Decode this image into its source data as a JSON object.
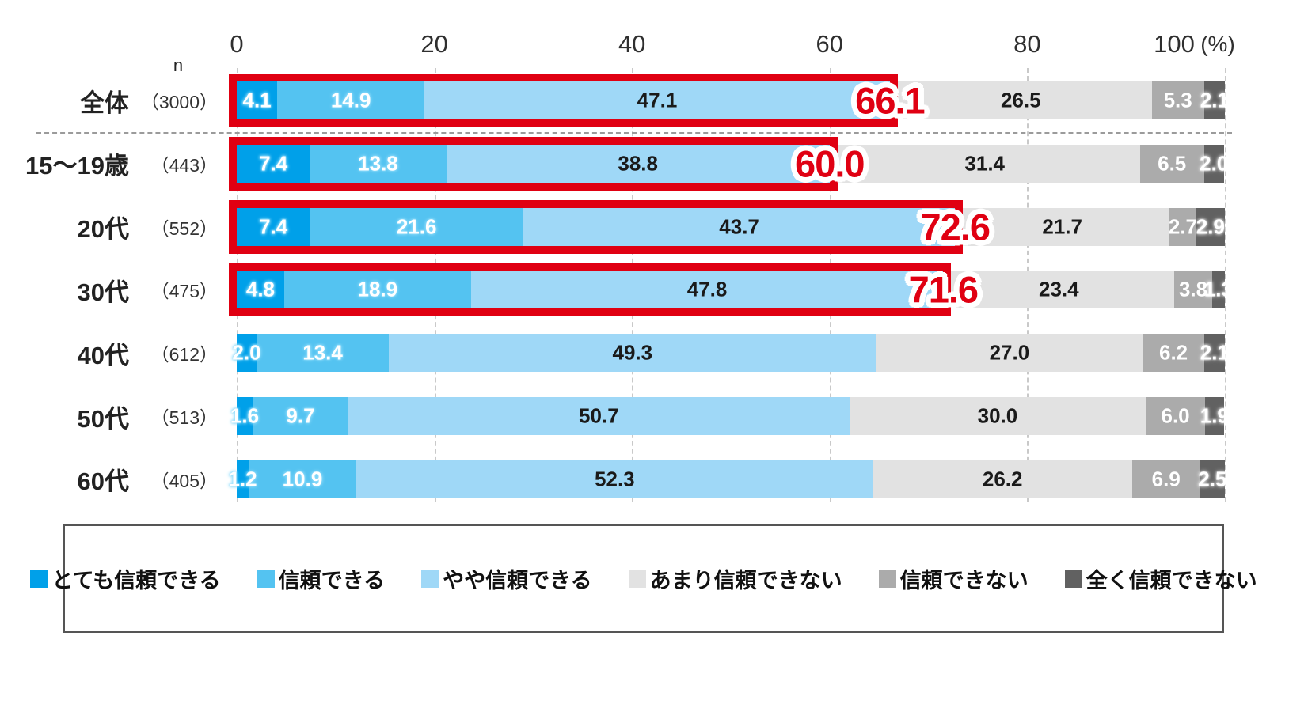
{
  "chart_data": {
    "type": "bar",
    "orientation": "horizontal-stacked",
    "title": "",
    "unit": "(%)",
    "n_header": "n",
    "x_axis": {
      "tick_values": [
        0,
        20,
        40,
        60,
        80,
        100
      ],
      "tick_labels": [
        "0",
        "20",
        "40",
        "60",
        "80",
        "100"
      ],
      "min": 0,
      "max": 100,
      "grid": true,
      "grid_style": "dashed"
    },
    "legend_position": "bottom",
    "series_labels": [
      "とても信頼できる",
      "信頼できる",
      "やや信頼できる",
      "あまり信頼できない",
      "信頼できない",
      "全く信頼できない"
    ],
    "series_colors": [
      "#00a0e9",
      "#54c3f1",
      "#9fd8f7",
      "#e2e2e2",
      "#ababab",
      "#616161"
    ],
    "label_styles": [
      "halo-blue",
      "halo-blue",
      "plain-dark",
      "plain-dark",
      "plain-white",
      "halo-white"
    ],
    "highlight_color": "#e00012",
    "highlighted_series_span": [
      0,
      1,
      2
    ],
    "categories": [
      {
        "name": "全体",
        "n": "（3000）",
        "values": [
          4.1,
          14.9,
          47.1,
          26.5,
          5.3,
          2.1
        ],
        "highlight_total": "66.1"
      },
      {
        "name": "15～19歳",
        "n": "（443）",
        "values": [
          7.4,
          13.8,
          38.8,
          31.4,
          6.5,
          2.0
        ],
        "highlight_total": "60.0"
      },
      {
        "name": "20代",
        "n": "（552）",
        "values": [
          7.4,
          21.6,
          43.7,
          21.7,
          2.7,
          2.9
        ],
        "highlight_total": "72.6"
      },
      {
        "name": "30代",
        "n": "（475）",
        "values": [
          4.8,
          18.9,
          47.8,
          23.4,
          3.8,
          1.3
        ],
        "highlight_total": "71.6"
      },
      {
        "name": "40代",
        "n": "（612）",
        "values": [
          2.0,
          13.4,
          49.3,
          27.0,
          6.2,
          2.1
        ],
        "highlight_total": null
      },
      {
        "name": "50代",
        "n": "（513）",
        "values": [
          1.6,
          9.7,
          50.7,
          30.0,
          6.0,
          1.9
        ],
        "highlight_total": null
      },
      {
        "name": "60代",
        "n": "（405）",
        "values": [
          1.2,
          10.9,
          52.3,
          26.2,
          6.9,
          2.5
        ],
        "highlight_total": null
      }
    ],
    "separator_after_category_index": 0
  }
}
